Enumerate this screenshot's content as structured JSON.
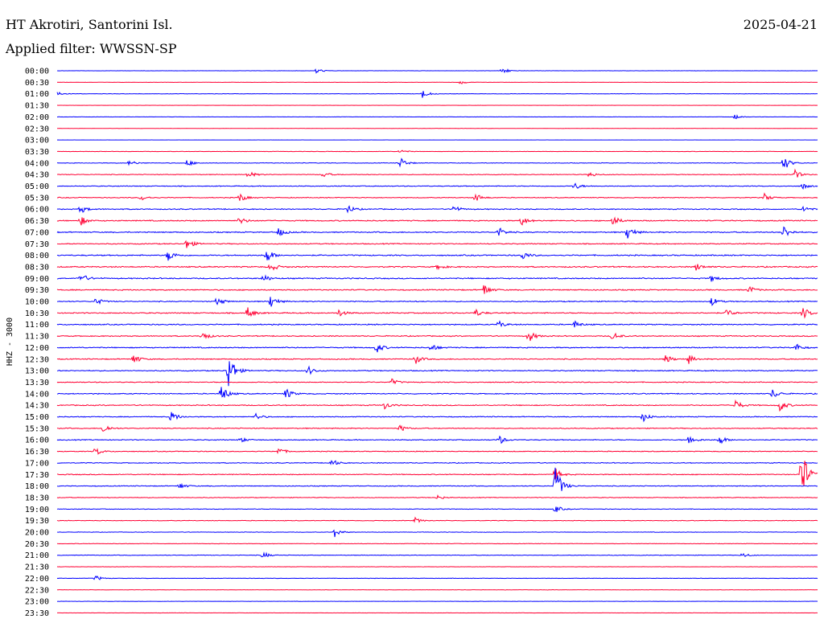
{
  "header": {
    "station": "HT Akrotiri, Santorini Isl.",
    "date": "2025-04-21",
    "filter_label": "Applied filter: WWSSN-SP"
  },
  "chart_data": {
    "type": "line",
    "title": "HT Akrotiri, Santorini Isl.",
    "subtitle": "Applied filter: WWSSN-SP",
    "date": "2025-04-21",
    "ylabel": "HHZ - 3000",
    "trace_colors": [
      "#0000ff",
      "#ff0033"
    ],
    "ticks": [
      "00:00",
      "00:30",
      "01:00",
      "01:30",
      "02:00",
      "02:30",
      "03:00",
      "03:30",
      "04:00",
      "04:30",
      "05:00",
      "05:30",
      "06:00",
      "06:30",
      "07:00",
      "07:30",
      "08:00",
      "08:30",
      "09:00",
      "09:30",
      "10:00",
      "10:30",
      "11:00",
      "11:30",
      "12:00",
      "12:30",
      "13:00",
      "13:30",
      "14:00",
      "14:30",
      "15:00",
      "15:30",
      "16:00",
      "16:30",
      "17:00",
      "17:30",
      "18:00",
      "18:30",
      "19:00",
      "19:30",
      "20:00",
      "20:30",
      "21:00",
      "21:30",
      "22:00",
      "22:30",
      "23:00",
      "23:30"
    ],
    "noise": [
      0.15,
      0.12,
      0.2,
      0.1,
      0.15,
      0.1,
      0.06,
      0.22,
      0.3,
      0.35,
      0.4,
      0.4,
      0.5,
      0.55,
      0.55,
      0.5,
      0.6,
      0.6,
      0.6,
      0.55,
      0.5,
      0.55,
      0.55,
      0.5,
      0.55,
      0.5,
      0.5,
      0.45,
      0.5,
      0.5,
      0.45,
      0.45,
      0.45,
      0.4,
      0.4,
      0.45,
      0.4,
      0.35,
      0.3,
      0.3,
      0.25,
      0.25,
      0.3,
      0.2,
      0.2,
      0.15,
      0.15,
      0.15
    ],
    "events": [
      {
        "row": 0,
        "t": 0.34,
        "amp": 4
      },
      {
        "row": 0,
        "t": 0.585,
        "amp": 5
      },
      {
        "row": 1,
        "t": 0.53,
        "amp": 3
      },
      {
        "row": 2,
        "t": 0.0,
        "amp": 3
      },
      {
        "row": 2,
        "t": 0.48,
        "amp": 6
      },
      {
        "row": 4,
        "t": 0.89,
        "amp": 4
      },
      {
        "row": 7,
        "t": 0.45,
        "amp": 3
      },
      {
        "row": 8,
        "t": 0.095,
        "amp": 4
      },
      {
        "row": 8,
        "t": 0.17,
        "amp": 5
      },
      {
        "row": 8,
        "t": 0.45,
        "amp": 9
      },
      {
        "row": 8,
        "t": 0.955,
        "amp": 11
      },
      {
        "row": 9,
        "t": 0.25,
        "amp": 6
      },
      {
        "row": 9,
        "t": 0.35,
        "amp": 4
      },
      {
        "row": 9,
        "t": 0.7,
        "amp": 4
      },
      {
        "row": 9,
        "t": 0.97,
        "amp": 6
      },
      {
        "row": 10,
        "t": 0.68,
        "amp": 5
      },
      {
        "row": 10,
        "t": 0.98,
        "amp": 4
      },
      {
        "row": 11,
        "t": 0.11,
        "amp": 4
      },
      {
        "row": 11,
        "t": 0.24,
        "amp": 6
      },
      {
        "row": 11,
        "t": 0.55,
        "amp": 6
      },
      {
        "row": 11,
        "t": 0.93,
        "amp": 5
      },
      {
        "row": 12,
        "t": 0.03,
        "amp": 6
      },
      {
        "row": 12,
        "t": 0.38,
        "amp": 7
      },
      {
        "row": 12,
        "t": 0.52,
        "amp": 6
      },
      {
        "row": 12,
        "t": 0.98,
        "amp": 5
      },
      {
        "row": 13,
        "t": 0.03,
        "amp": 7
      },
      {
        "row": 13,
        "t": 0.24,
        "amp": 5
      },
      {
        "row": 13,
        "t": 0.61,
        "amp": 7
      },
      {
        "row": 13,
        "t": 0.73,
        "amp": 8
      },
      {
        "row": 14,
        "t": 0.29,
        "amp": 7
      },
      {
        "row": 14,
        "t": 0.58,
        "amp": 7
      },
      {
        "row": 14,
        "t": 0.75,
        "amp": 10
      },
      {
        "row": 14,
        "t": 0.955,
        "amp": 9
      },
      {
        "row": 15,
        "t": 0.17,
        "amp": 8
      },
      {
        "row": 16,
        "t": 0.145,
        "amp": 9
      },
      {
        "row": 16,
        "t": 0.275,
        "amp": 10
      },
      {
        "row": 16,
        "t": 0.61,
        "amp": 7
      },
      {
        "row": 17,
        "t": 0.28,
        "amp": 7
      },
      {
        "row": 17,
        "t": 0.5,
        "amp": 4
      },
      {
        "row": 17,
        "t": 0.84,
        "amp": 5
      },
      {
        "row": 18,
        "t": 0.03,
        "amp": 8
      },
      {
        "row": 18,
        "t": 0.27,
        "amp": 6
      },
      {
        "row": 18,
        "t": 0.86,
        "amp": 4
      },
      {
        "row": 19,
        "t": 0.56,
        "amp": 9
      },
      {
        "row": 19,
        "t": 0.91,
        "amp": 5
      },
      {
        "row": 20,
        "t": 0.05,
        "amp": 6
      },
      {
        "row": 20,
        "t": 0.21,
        "amp": 6
      },
      {
        "row": 20,
        "t": 0.28,
        "amp": 10
      },
      {
        "row": 20,
        "t": 0.86,
        "amp": 6
      },
      {
        "row": 21,
        "t": 0.25,
        "amp": 8
      },
      {
        "row": 21,
        "t": 0.37,
        "amp": 5
      },
      {
        "row": 21,
        "t": 0.55,
        "amp": 5
      },
      {
        "row": 21,
        "t": 0.88,
        "amp": 6
      },
      {
        "row": 21,
        "t": 0.98,
        "amp": 9
      },
      {
        "row": 22,
        "t": 0.58,
        "amp": 5
      },
      {
        "row": 22,
        "t": 0.68,
        "amp": 5
      },
      {
        "row": 23,
        "t": 0.19,
        "amp": 7
      },
      {
        "row": 23,
        "t": 0.62,
        "amp": 8
      },
      {
        "row": 23,
        "t": 0.73,
        "amp": 6
      },
      {
        "row": 24,
        "t": 0.42,
        "amp": 7
      },
      {
        "row": 24,
        "t": 0.49,
        "amp": 7
      },
      {
        "row": 24,
        "t": 0.97,
        "amp": 6
      },
      {
        "row": 25,
        "t": 0.1,
        "amp": 7
      },
      {
        "row": 25,
        "t": 0.47,
        "amp": 7
      },
      {
        "row": 25,
        "t": 0.8,
        "amp": 6
      },
      {
        "row": 25,
        "t": 0.83,
        "amp": 6
      },
      {
        "row": 26,
        "t": 0.225,
        "amp": 26
      },
      {
        "row": 26,
        "t": 0.33,
        "amp": 6
      },
      {
        "row": 27,
        "t": 0.44,
        "amp": 4
      },
      {
        "row": 28,
        "t": 0.215,
        "amp": 14
      },
      {
        "row": 28,
        "t": 0.3,
        "amp": 8
      },
      {
        "row": 28,
        "t": 0.94,
        "amp": 7
      },
      {
        "row": 29,
        "t": 0.43,
        "amp": 5
      },
      {
        "row": 29,
        "t": 0.89,
        "amp": 9
      },
      {
        "row": 29,
        "t": 0.95,
        "amp": 8
      },
      {
        "row": 30,
        "t": 0.15,
        "amp": 8
      },
      {
        "row": 30,
        "t": 0.26,
        "amp": 5
      },
      {
        "row": 30,
        "t": 0.77,
        "amp": 7
      },
      {
        "row": 31,
        "t": 0.06,
        "amp": 7
      },
      {
        "row": 31,
        "t": 0.45,
        "amp": 5
      },
      {
        "row": 32,
        "t": 0.24,
        "amp": 4
      },
      {
        "row": 32,
        "t": 0.58,
        "amp": 7
      },
      {
        "row": 32,
        "t": 0.83,
        "amp": 8
      },
      {
        "row": 32,
        "t": 0.87,
        "amp": 7
      },
      {
        "row": 33,
        "t": 0.05,
        "amp": 6
      },
      {
        "row": 33,
        "t": 0.29,
        "amp": 6
      },
      {
        "row": 34,
        "t": 0.36,
        "amp": 6
      },
      {
        "row": 35,
        "t": 0.655,
        "amp": 8
      },
      {
        "row": 35,
        "t": 0.978,
        "amp": 42
      },
      {
        "row": 36,
        "t": 0.16,
        "amp": 5
      },
      {
        "row": 36,
        "t": 0.655,
        "amp": 28
      },
      {
        "row": 37,
        "t": 0.5,
        "amp": 3
      },
      {
        "row": 38,
        "t": 0.655,
        "amp": 5
      },
      {
        "row": 39,
        "t": 0.47,
        "amp": 4
      },
      {
        "row": 40,
        "t": 0.365,
        "amp": 6
      },
      {
        "row": 42,
        "t": 0.27,
        "amp": 5
      },
      {
        "row": 42,
        "t": 0.9,
        "amp": 4
      },
      {
        "row": 44,
        "t": 0.05,
        "amp": 4
      }
    ]
  }
}
